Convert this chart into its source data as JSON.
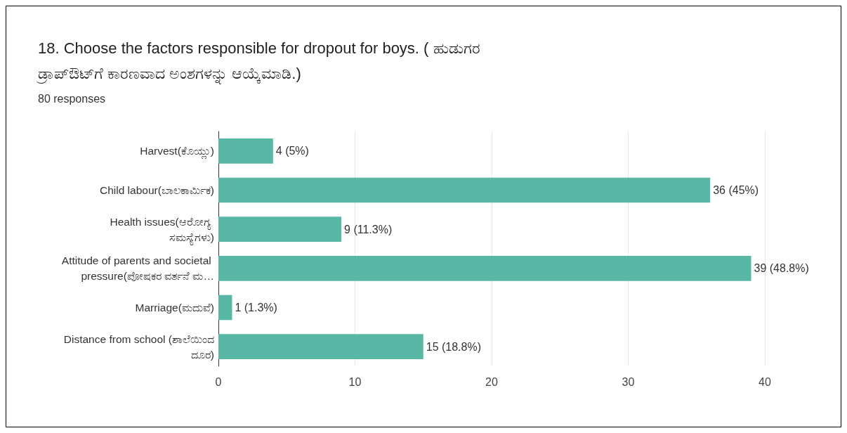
{
  "chart_data": {
    "type": "bar",
    "orientation": "horizontal",
    "title": "18. Choose the factors responsible for dropout for boys. ( ಹುಡುಗರ ಡ್ರಾಪ್‌ಔಟ್‌ಗೆ ಕಾರಣವಾದ ಅಂಶಗಳನ್ನು ಆಯ್ಕೆಮಾಡಿ.)",
    "subtitle": "80 responses",
    "categories": [
      "Harvest(ಕೊಯ್ಲು)",
      "Child labour(ಬಾಲಕಾರ್ಮಿಕ)",
      "Health issues(ಆರೋಗ್ಯ ಸಮಸ್ಯೆಗಳು)",
      "Attitude of parents and societal pressure(ಪೋಷಕರ ವರ್ತನೆ ಮ…",
      "Marriage(ಮದುವೆ)",
      "Distance from school (ಶಾಲೆಯಿಂದ ದೂರ)"
    ],
    "values": [
      4,
      36,
      9,
      39,
      1,
      15
    ],
    "value_labels": [
      "4 (5%)",
      "36 (45%)",
      "9 (11.3%)",
      "39 (48.8%)",
      "1 (1.3%)",
      "15 (18.8%)"
    ],
    "color": "#59b8a5",
    "xlim": [
      0,
      40
    ],
    "xticks": [
      0,
      10,
      20,
      30,
      40
    ],
    "grid": "x"
  }
}
